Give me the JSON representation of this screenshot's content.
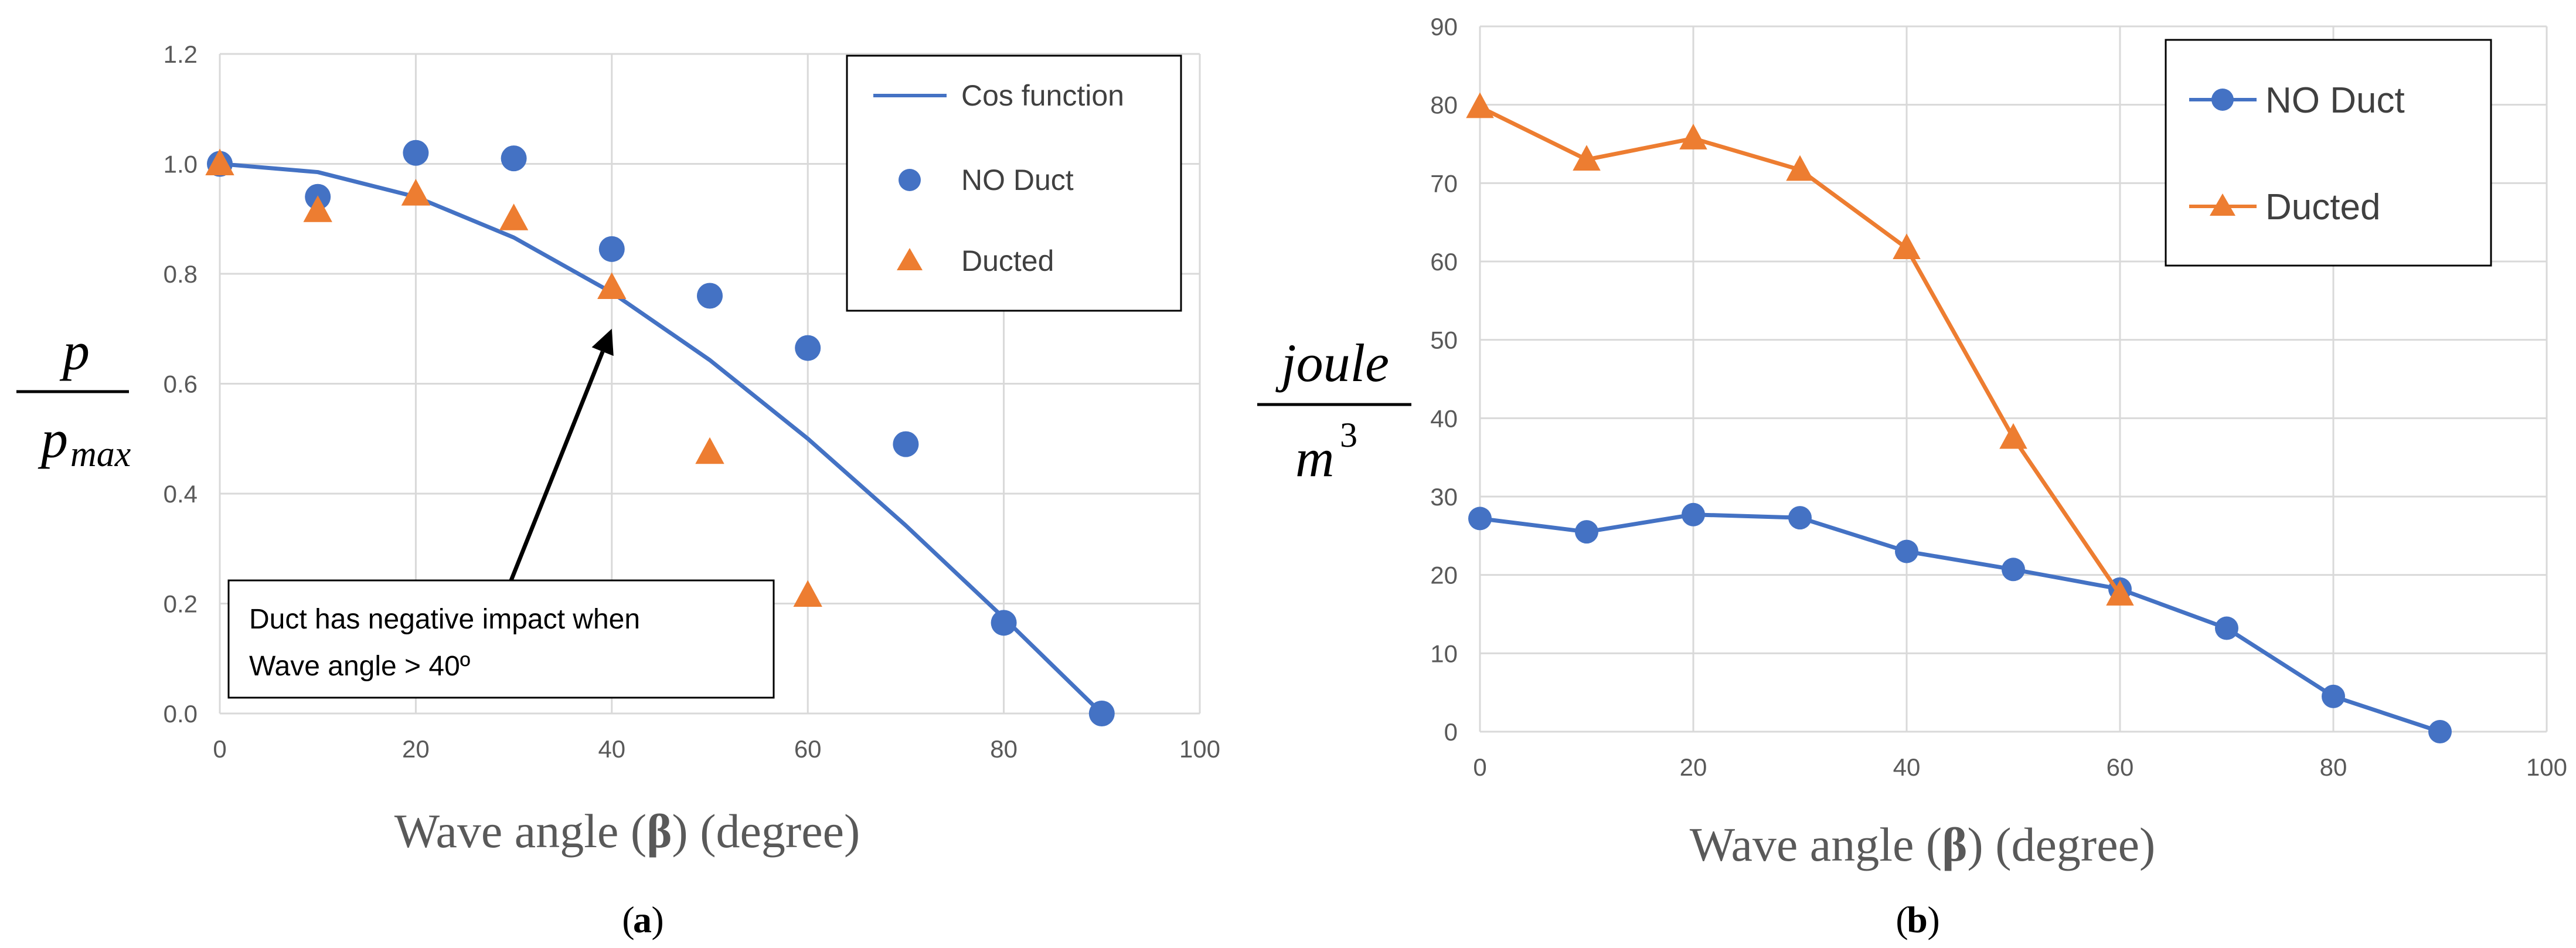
{
  "chart_data": [
    {
      "id": "a",
      "type": "scatter",
      "panel_label": "a",
      "xlabel": "Wave angle (β) (degree)",
      "ylabel": {
        "numerator": "p",
        "denominator_base": "p",
        "denominator_sub": "max"
      },
      "xlim": [
        0,
        100
      ],
      "ylim": [
        0,
        1.2
      ],
      "xticks": [
        "0",
        "20",
        "40",
        "60",
        "80",
        "100"
      ],
      "yticks": [
        "0.0",
        "0.2",
        "0.4",
        "0.6",
        "0.8",
        "1.0",
        "1.2"
      ],
      "legend_position": "top-right",
      "colors": {
        "cos": "#4472c4",
        "no_duct": "#4472c4",
        "ducted": "#ed7d31"
      },
      "series": [
        {
          "name": "Cos function",
          "style": "line",
          "x": [
            0,
            10,
            20,
            30,
            40,
            50,
            60,
            70,
            80,
            90
          ],
          "y": [
            1.0,
            0.985,
            0.94,
            0.866,
            0.766,
            0.643,
            0.5,
            0.342,
            0.174,
            0.0
          ]
        },
        {
          "name": "NO Duct",
          "style": "marker-circle",
          "x": [
            0,
            10,
            20,
            30,
            40,
            50,
            60,
            70,
            80,
            90
          ],
          "y": [
            1.0,
            0.94,
            1.02,
            1.01,
            0.845,
            0.76,
            0.665,
            0.49,
            0.165,
            0.0
          ]
        },
        {
          "name": "Ducted",
          "style": "marker-triangle",
          "x": [
            0,
            10,
            20,
            30,
            40,
            50,
            60
          ],
          "y": [
            1.0,
            0.915,
            0.945,
            0.9,
            0.775,
            0.475,
            0.215
          ]
        }
      ],
      "annotation": {
        "line1": "Duct has negative impact when",
        "line2": "Wave angle > 40º",
        "points_to": [
          40,
          0.7
        ]
      }
    },
    {
      "id": "b",
      "type": "line",
      "panel_label": "b",
      "xlabel": "Wave angle (β) (degree)",
      "ylabel": {
        "numerator": "joule",
        "denominator_base": "m",
        "denominator_sup": "3"
      },
      "xlim": [
        0,
        100
      ],
      "ylim": [
        0,
        90
      ],
      "xticks": [
        "0",
        "20",
        "40",
        "60",
        "80",
        "100"
      ],
      "yticks": [
        "0",
        "10",
        "20",
        "30",
        "40",
        "50",
        "60",
        "70",
        "80",
        "90"
      ],
      "legend_position": "top-right",
      "colors": {
        "no_duct": "#4472c4",
        "ducted": "#ed7d31"
      },
      "series": [
        {
          "name": "NO Duct",
          "style": "line-circle",
          "x": [
            0,
            10,
            20,
            30,
            40,
            50,
            60,
            70,
            80,
            90
          ],
          "y": [
            27.2,
            25.5,
            27.7,
            27.3,
            23.0,
            20.7,
            18.2,
            13.2,
            4.5,
            0.0
          ]
        },
        {
          "name": "Ducted",
          "style": "line-triangle",
          "x": [
            0,
            10,
            20,
            30,
            40,
            50,
            60
          ],
          "y": [
            79.7,
            73.0,
            75.7,
            71.7,
            61.7,
            37.5,
            17.5
          ]
        }
      ]
    }
  ]
}
